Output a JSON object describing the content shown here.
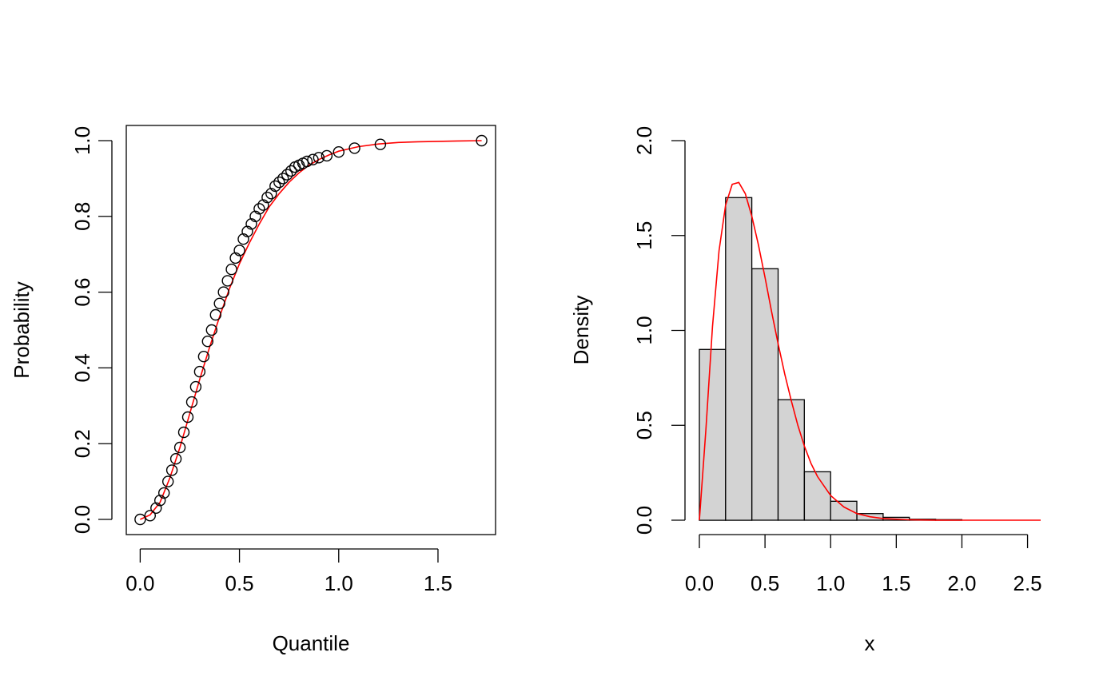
{
  "chart_data": [
    {
      "type": "scatter",
      "xlabel": "Quantile",
      "ylabel": "Probability",
      "xlim": [
        -0.07,
        1.79
      ],
      "ylim": [
        -0.04,
        1.04
      ],
      "box": true,
      "grid": false,
      "x_ticks": [
        0.0,
        0.5,
        1.0,
        1.5
      ],
      "x_tick_labels": [
        "0.0",
        "0.5",
        "1.0",
        "1.5"
      ],
      "y_ticks": [
        0.0,
        0.2,
        0.4,
        0.6,
        0.8,
        1.0
      ],
      "y_tick_labels": [
        "0.0",
        "0.2",
        "0.4",
        "0.6",
        "0.8",
        "1.0"
      ],
      "series": [
        {
          "kind": "points",
          "marker": "open-circle",
          "color": "#000000",
          "x": [
            0.0,
            0.05,
            0.08,
            0.1,
            0.12,
            0.14,
            0.16,
            0.18,
            0.2,
            0.22,
            0.24,
            0.26,
            0.28,
            0.3,
            0.32,
            0.34,
            0.36,
            0.38,
            0.4,
            0.42,
            0.44,
            0.46,
            0.48,
            0.5,
            0.52,
            0.54,
            0.56,
            0.58,
            0.6,
            0.62,
            0.64,
            0.66,
            0.68,
            0.7,
            0.72,
            0.74,
            0.76,
            0.78,
            0.8,
            0.82,
            0.84,
            0.87,
            0.9,
            0.94,
            1.0,
            1.08,
            1.21,
            1.72
          ],
          "y": [
            0.0,
            0.01,
            0.03,
            0.05,
            0.07,
            0.1,
            0.13,
            0.16,
            0.19,
            0.23,
            0.27,
            0.31,
            0.35,
            0.39,
            0.43,
            0.47,
            0.5,
            0.54,
            0.57,
            0.6,
            0.63,
            0.66,
            0.69,
            0.71,
            0.74,
            0.76,
            0.78,
            0.8,
            0.82,
            0.83,
            0.85,
            0.86,
            0.88,
            0.89,
            0.9,
            0.91,
            0.92,
            0.93,
            0.935,
            0.94,
            0.945,
            0.95,
            0.955,
            0.96,
            0.97,
            0.98,
            0.99,
            1.0
          ]
        },
        {
          "kind": "line",
          "color": "#ff0000",
          "x": [
            0.0,
            0.05,
            0.1,
            0.15,
            0.2,
            0.25,
            0.3,
            0.35,
            0.4,
            0.45,
            0.5,
            0.55,
            0.6,
            0.65,
            0.7,
            0.75,
            0.8,
            0.85,
            0.9,
            0.95,
            1.0,
            1.1,
            1.2,
            1.3,
            1.4,
            1.5,
            1.6,
            1.72
          ],
          "y": [
            0.0,
            0.012,
            0.045,
            0.11,
            0.19,
            0.28,
            0.37,
            0.455,
            0.535,
            0.61,
            0.675,
            0.73,
            0.78,
            0.825,
            0.86,
            0.89,
            0.915,
            0.935,
            0.95,
            0.962,
            0.972,
            0.984,
            0.991,
            0.995,
            0.997,
            0.998,
            0.999,
            1.0
          ]
        }
      ]
    },
    {
      "type": "bar",
      "histogram": true,
      "xlabel": "x",
      "ylabel": "Density",
      "xlim": [
        0.0,
        2.6
      ],
      "ylim": [
        0.0,
        2.0
      ],
      "box": false,
      "grid": false,
      "x_ticks": [
        0.0,
        0.5,
        1.0,
        1.5,
        2.0,
        2.5
      ],
      "x_tick_labels": [
        "0.0",
        "0.5",
        "1.0",
        "1.5",
        "2.0",
        "2.5"
      ],
      "y_ticks": [
        0.0,
        0.5,
        1.0,
        1.5,
        2.0
      ],
      "y_tick_labels": [
        "0.0",
        "0.5",
        "1.0",
        "1.5",
        "2.0"
      ],
      "bar_color": "#d3d3d3",
      "bin_edges": [
        0.0,
        0.2,
        0.4,
        0.6,
        0.8,
        1.0,
        1.2,
        1.4,
        1.6,
        1.8,
        2.0
      ],
      "values": [
        0.9,
        1.7,
        1.325,
        0.635,
        0.255,
        0.1,
        0.035,
        0.015,
        0.005,
        0.003
      ],
      "density_curve": {
        "color": "#ff0000",
        "x": [
          0.0,
          0.05,
          0.1,
          0.15,
          0.2,
          0.25,
          0.3,
          0.35,
          0.4,
          0.45,
          0.5,
          0.55,
          0.6,
          0.65,
          0.7,
          0.75,
          0.8,
          0.85,
          0.9,
          1.0,
          1.1,
          1.2,
          1.3,
          1.4,
          1.6,
          1.8,
          2.0,
          2.2,
          2.6
        ],
        "y": [
          0.0,
          0.48,
          1.02,
          1.42,
          1.66,
          1.77,
          1.78,
          1.72,
          1.6,
          1.45,
          1.28,
          1.1,
          0.93,
          0.77,
          0.63,
          0.5,
          0.39,
          0.3,
          0.23,
          0.13,
          0.07,
          0.035,
          0.018,
          0.009,
          0.002,
          0.0005,
          0.0001,
          0.0,
          0.0
        ]
      }
    }
  ]
}
